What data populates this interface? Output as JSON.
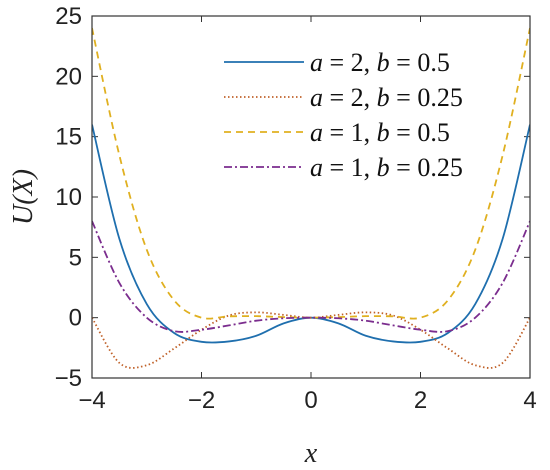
{
  "chart_data": {
    "type": "line",
    "xlabel": "x",
    "ylabel": "U(X)",
    "xlim": [
      -4,
      4
    ],
    "ylim": [
      -5,
      25
    ],
    "xticks": [
      -4,
      -2,
      0,
      2,
      4
    ],
    "xtick_labels": [
      "−4",
      "−2",
      "0",
      "2",
      "4"
    ],
    "yticks": [
      -5,
      0,
      5,
      10,
      15,
      20,
      25
    ],
    "ytick_labels": [
      "−5",
      "0",
      "5",
      "10",
      "15",
      "20",
      "25"
    ],
    "grid": false,
    "legend_position": "top-right",
    "x": [
      -4,
      -3.5,
      -3,
      -2.5,
      -2,
      -1.5,
      -1,
      -0.5,
      0,
      0.5,
      1,
      1.5,
      2,
      2.5,
      3,
      3.5,
      4
    ],
    "series": [
      {
        "name": "a = 2, b = 0.5",
        "a": "2",
        "b": "0.5",
        "color": "#1f6fae",
        "style": "solid",
        "values": [
          16,
          6.53,
          1.13,
          -1.27,
          -2,
          -1.97,
          -1.5,
          -0.47,
          0,
          -0.47,
          -1.5,
          -1.97,
          -2,
          -1.27,
          1.13,
          6.53,
          16
        ]
      },
      {
        "name": "a = 2, b = 0.25",
        "a": "2",
        "b": "0.25",
        "color": "#c0622a",
        "style": "dotted",
        "values": [
          0,
          -3.75,
          -3.94,
          -2.55,
          -1,
          0.18,
          0.44,
          0.23,
          0,
          0.23,
          0.44,
          0.18,
          -1,
          -2.55,
          -3.94,
          -3.75,
          0
        ]
      },
      {
        "name": "a = 1, b = 0.5",
        "a": "1",
        "b": "0.5",
        "color": "#e0b020",
        "style": "dashed",
        "values": [
          24,
          13.45,
          5.63,
          1.44,
          0,
          0.11,
          0.125,
          0.047,
          0,
          0.047,
          0.125,
          0.11,
          0,
          1.44,
          5.63,
          13.45,
          24
        ]
      },
      {
        "name": "a = 1, b = 0.25",
        "a": "1",
        "b": "0.25",
        "color": "#7b2d8e",
        "style": "dashdot",
        "values": [
          8,
          2.88,
          0,
          -1.12,
          -1,
          -0.64,
          -0.25,
          -0.05,
          0,
          -0.05,
          -0.25,
          -0.64,
          -1,
          -1.12,
          0,
          2.88,
          8
        ]
      }
    ]
  }
}
